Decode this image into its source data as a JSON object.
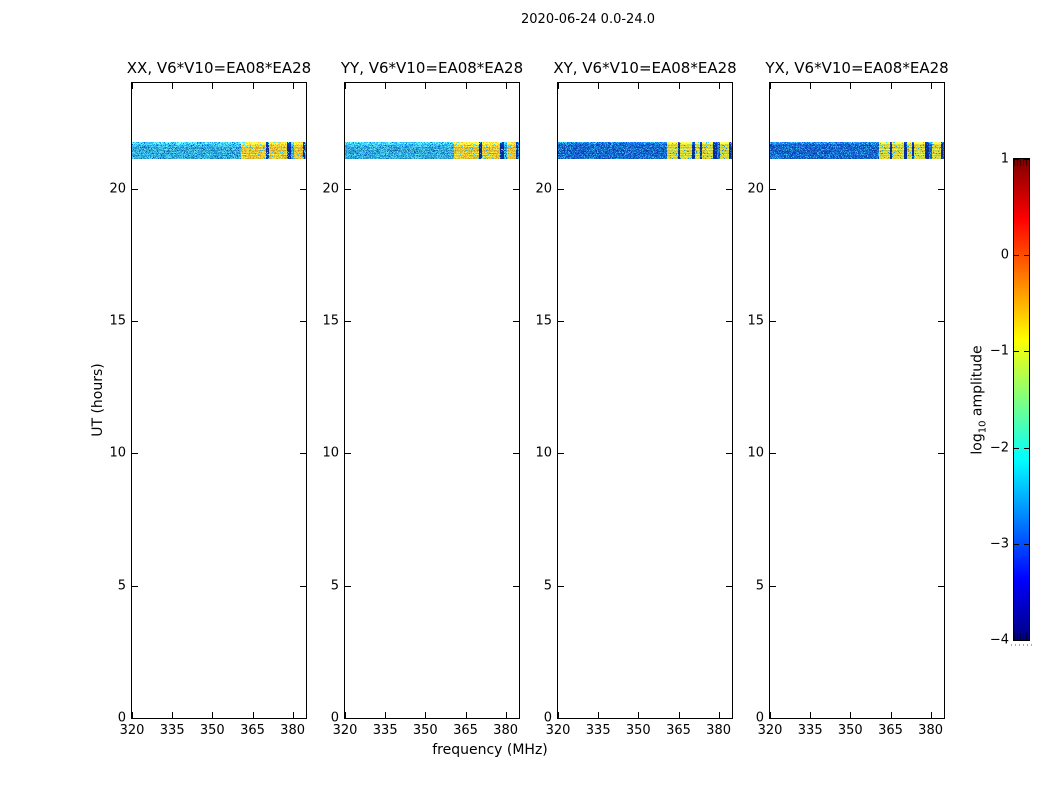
{
  "figure": {
    "title": "2020-06-24 0.0-24.0",
    "xlabel": "frequency (MHz)",
    "ylabel": "UT (hours)",
    "colorbar_label_prefix": "log",
    "colorbar_label_sub": "10",
    "colorbar_label_suffix": " amplitude"
  },
  "chart_data": {
    "type": "heatmap",
    "title": "2020-06-24 0.0-24.0",
    "xlabel": "frequency (MHz)",
    "ylabel": "UT (hours)",
    "x_range_mhz": [
      320,
      385
    ],
    "y_range_hours": [
      0,
      24
    ],
    "x_ticks": [
      320,
      335,
      350,
      365,
      380
    ],
    "y_ticks": [
      0,
      5,
      10,
      15,
      20
    ],
    "colorbar": {
      "label": "log10 amplitude",
      "ticks": [
        1,
        0,
        -1,
        -2,
        -3,
        -4
      ],
      "range": [
        -4,
        1
      ],
      "colormap": "jet",
      "jet_stops": [
        "#00007f",
        "#0000ff",
        "#00ffff",
        "#ffff00",
        "#ff0000",
        "#7f0000"
      ],
      "jet_positions": [
        0,
        0.125,
        0.375,
        0.625,
        0.875,
        1
      ]
    },
    "subplots": [
      {
        "title": "XX, V6*V10=EA08*EA28",
        "pol": "XX",
        "band_style": "parallel"
      },
      {
        "title": "YY, V6*V10=EA08*EA28",
        "pol": "YY",
        "band_style": "parallel"
      },
      {
        "title": "XY, V6*V10=EA08*EA28",
        "pol": "XY",
        "band_style": "cross"
      },
      {
        "title": "YX, V6*V10=EA08*EA28",
        "pol": "YX",
        "band_style": "cross"
      }
    ],
    "band": {
      "ut_start": 21.15,
      "ut_end": 21.78,
      "rfi_patches_mhz": [
        [
          360.5,
          369.8
        ],
        [
          370.9,
          377.8
        ],
        [
          380.3,
          383.6
        ]
      ],
      "dark_lines_mhz": [
        [
          369.8,
          370.9
        ],
        [
          377.8,
          379.3
        ],
        [
          383.6,
          384.6
        ]
      ],
      "cross_extra_dark_lines_mhz": [
        [
          364.5,
          365.3
        ],
        [
          372.8,
          373.6
        ]
      ],
      "dark_color": "#0a2f9e",
      "styles": {
        "parallel": {
          "base_colors": [
            "#38bce8",
            "#4ecdf0",
            "#2aaade",
            "#1e90d2",
            "#5fd6f2",
            "#27a3da"
          ],
          "speckle_color": "#0f5ec4",
          "speckle_rate": 0.05,
          "patch_colors": [
            "#f2e23c",
            "#ecd834",
            "#f6c82e",
            "#dce24a",
            "#f0aa26"
          ],
          "patch_speckle_color": "#46c4e8",
          "patch_speckle_rate": 0.1,
          "row_factors": [
            1.2,
            1.24,
            1.12,
            0.98,
            1.05,
            0.9,
            0.96,
            1.02,
            0.88,
            0.95,
            1.0,
            0.9,
            1.06,
            0.92,
            0.97,
            1.0,
            0.94
          ]
        },
        "cross": {
          "base_colors": [
            "#1565d2",
            "#0d4fc2",
            "#1d74da",
            "#2090e0",
            "#0b42b4",
            "#1a6ad6"
          ],
          "speckle_color": "#35b4e6",
          "speckle_rate": 0.1,
          "patch_colors": [
            "#eee63a",
            "#e2e242",
            "#cce24a",
            "#f0d632",
            "#bede4e"
          ],
          "patch_speckle_color": "#2f9ed8",
          "patch_speckle_rate": 0.08,
          "row_factors": [
            1.35,
            1.2,
            1.0,
            0.92,
            1.02,
            0.88,
            0.97,
            1.04,
            0.9,
            0.96,
            1.0,
            0.88,
            1.05,
            0.93,
            0.98,
            1.0,
            0.95
          ]
        }
      }
    }
  }
}
